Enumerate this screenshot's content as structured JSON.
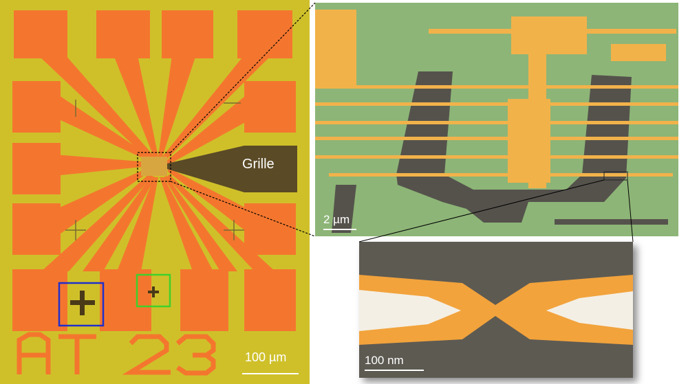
{
  "optical": {
    "gate_label": "Grille",
    "scale_label": "100 µm",
    "chip_marking": "AT 23"
  },
  "sem": {
    "scale_label": "2 µm"
  },
  "zoom": {
    "scale_label": "100 nm"
  },
  "colors": {
    "substrate": "#cfc02a",
    "pad": "#f4762e",
    "gate": "#5a4a26",
    "sem_background": "#8db577",
    "gold": "#f2b24a",
    "dark_pad": "#55524c",
    "marker_blue": "#1f2fcc",
    "marker_green": "#3fd02a"
  }
}
